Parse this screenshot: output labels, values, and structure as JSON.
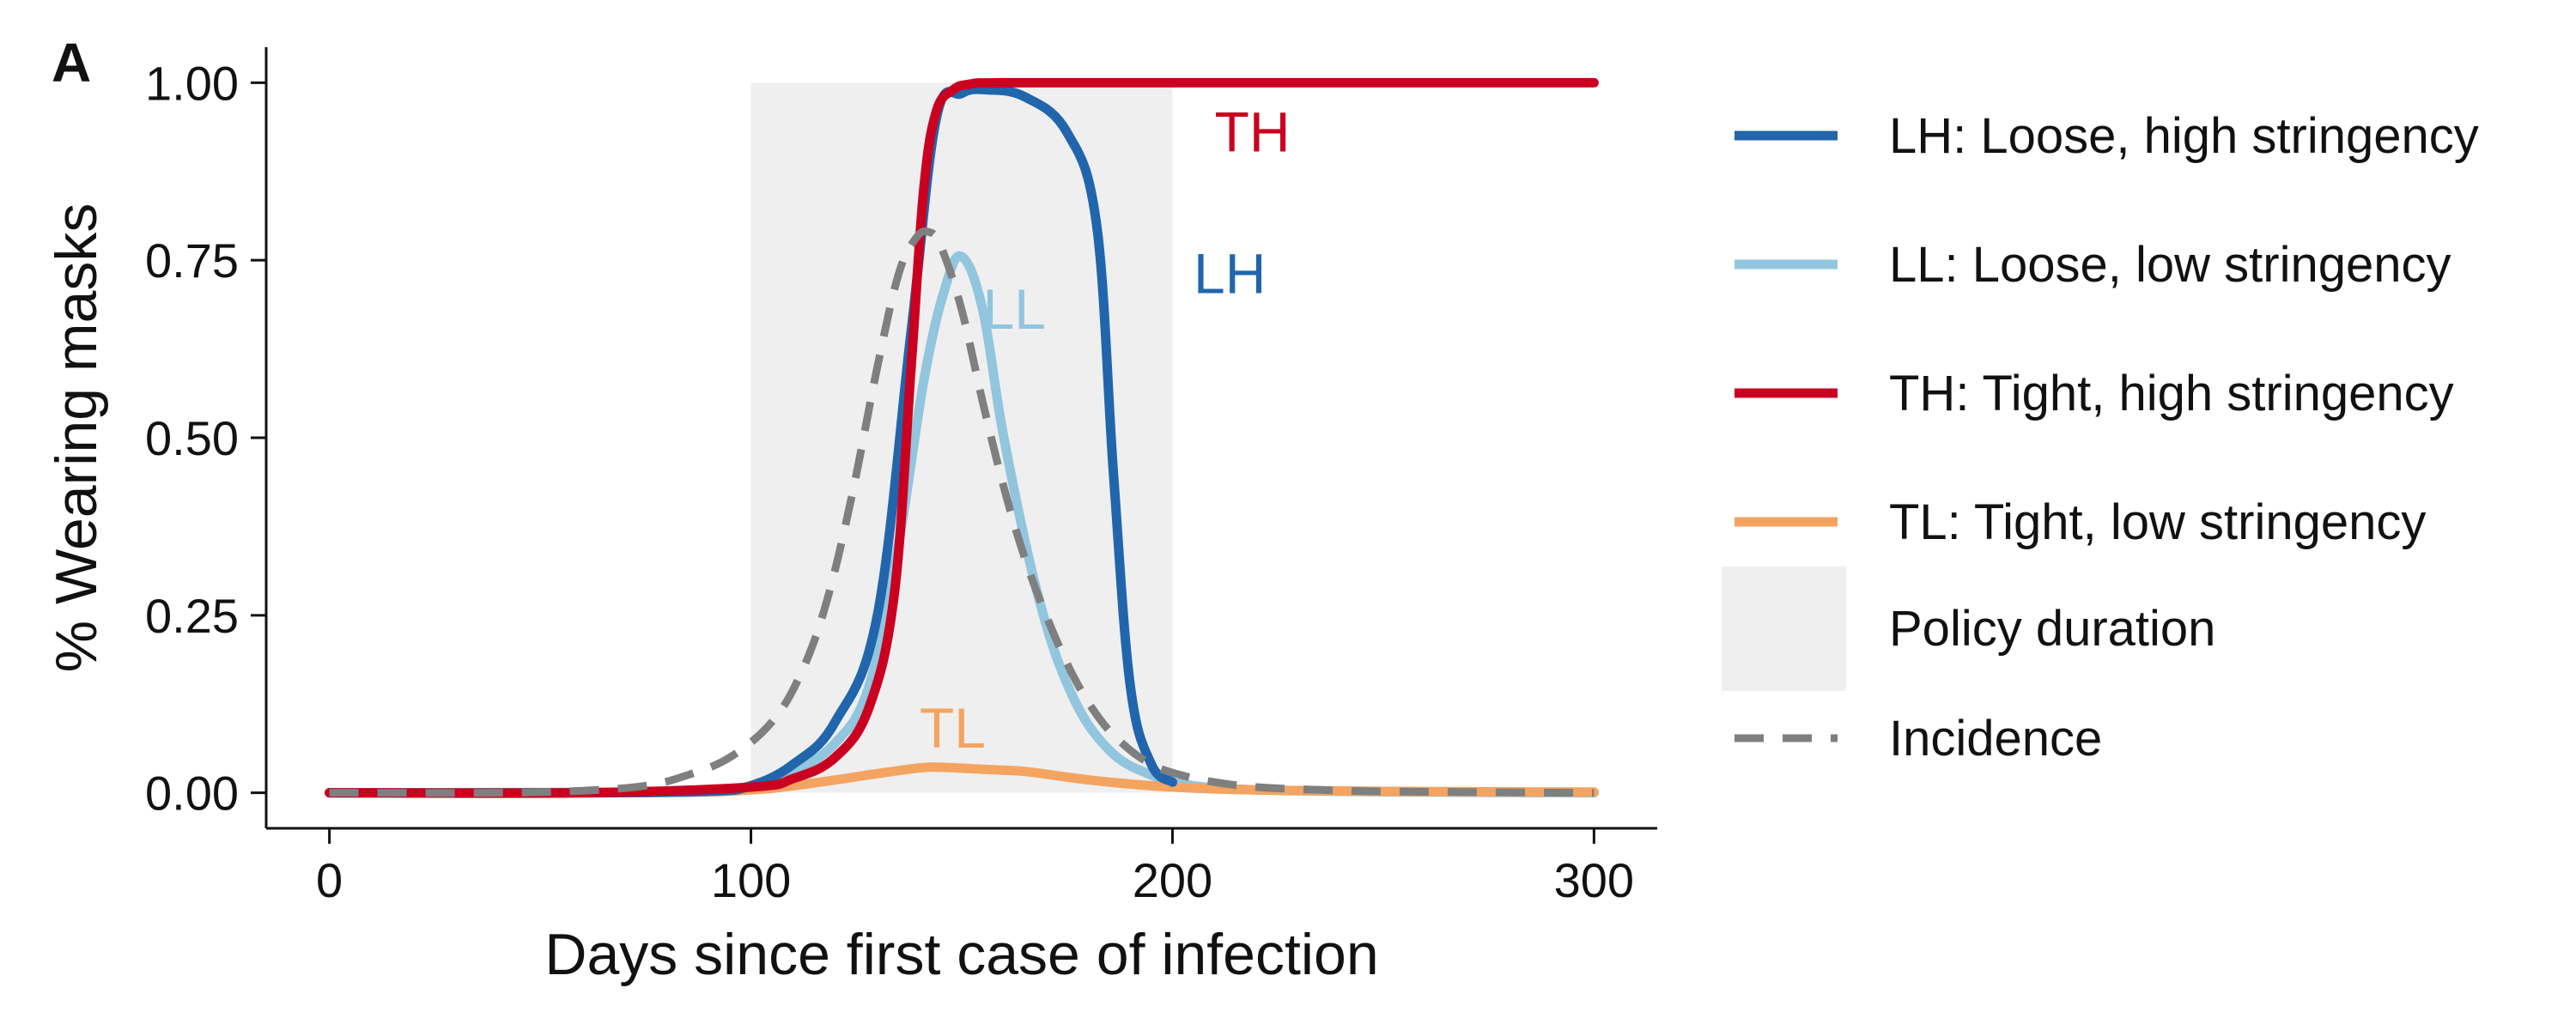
{
  "chart_data": {
    "type": "line",
    "panel_label": "A",
    "xlabel": "Days since first case of infection",
    "ylabel": "% Wearing masks",
    "xlim": [
      -15,
      315
    ],
    "ylim": [
      -0.05,
      1.05
    ],
    "x_ticks": [
      0,
      100,
      200,
      300
    ],
    "x_tick_labels": [
      "0",
      "100",
      "200",
      "300"
    ],
    "y_ticks": [
      0,
      0.25,
      0.5,
      0.75,
      1
    ],
    "y_tick_labels": [
      "0.00",
      "0.25",
      "0.50",
      "0.75",
      "1.00"
    ],
    "grid": false,
    "legend_position": "right",
    "policy_duration": {
      "label": "Policy duration",
      "x_start": 100,
      "x_end": 200,
      "color": "#efefef"
    },
    "series": [
      {
        "name": "LH: Loose, high stringency",
        "key": "LH",
        "color": "#2166ac",
        "style": "solid",
        "annotation": "LH",
        "x": [
          0,
          60,
          90,
          100,
          110,
          120,
          130,
          138,
          144,
          150,
          156,
          165,
          175,
          182,
          186,
          190,
          195,
          200
        ],
        "y": [
          0,
          0,
          0.002,
          0.01,
          0.04,
          0.1,
          0.25,
          0.65,
          0.95,
          0.985,
          0.99,
          0.98,
          0.93,
          0.8,
          0.45,
          0.15,
          0.04,
          0.015
        ]
      },
      {
        "name": "LL: Loose, low stringency",
        "key": "LL",
        "color": "#92c5de",
        "style": "solid",
        "annotation": "LL",
        "x": [
          0,
          60,
          90,
          100,
          110,
          120,
          128,
          135,
          141,
          146,
          150,
          155,
          160,
          168,
          176,
          185,
          195,
          205,
          220,
          240,
          260,
          300
        ],
        "y": [
          0,
          0,
          0.002,
          0.01,
          0.03,
          0.07,
          0.15,
          0.35,
          0.58,
          0.71,
          0.755,
          0.68,
          0.5,
          0.28,
          0.14,
          0.06,
          0.025,
          0.01,
          0.004,
          0.002,
          0.001,
          0
        ]
      },
      {
        "name": "TH: Tight, high stringency",
        "key": "TH",
        "color": "#ca0020",
        "style": "solid",
        "annotation": "TH",
        "x": [
          0,
          60,
          100,
          110,
          120,
          128,
          134,
          138,
          141,
          144,
          148,
          152,
          160,
          200,
          300
        ],
        "y": [
          0,
          0,
          0.008,
          0.02,
          0.05,
          0.12,
          0.28,
          0.6,
          0.85,
          0.96,
          0.99,
          0.998,
          1,
          1,
          1
        ]
      },
      {
        "name": "TL: Tight, low stringency",
        "key": "TL",
        "color": "#f4a460",
        "style": "solid",
        "annotation": "TL",
        "x": [
          0,
          80,
          100,
          110,
          120,
          130,
          140,
          145,
          155,
          165,
          175,
          185,
          200,
          220,
          250,
          300
        ],
        "y": [
          0,
          0.001,
          0.004,
          0.01,
          0.018,
          0.027,
          0.035,
          0.036,
          0.033,
          0.03,
          0.022,
          0.015,
          0.008,
          0.004,
          0.002,
          0.001
        ]
      },
      {
        "name": "Incidence",
        "key": "Incidence",
        "color": "#7f7f7f",
        "style": "dashed",
        "x": [
          0,
          40,
          60,
          75,
          85,
          95,
          105,
          112,
          118,
          124,
          130,
          135,
          139,
          142,
          145,
          150,
          155,
          160,
          165,
          170,
          176,
          182,
          188,
          195,
          202,
          210,
          220,
          235,
          250,
          270,
          300
        ],
        "y": [
          0,
          0,
          0.003,
          0.01,
          0.025,
          0.05,
          0.1,
          0.17,
          0.27,
          0.42,
          0.6,
          0.73,
          0.78,
          0.79,
          0.77,
          0.68,
          0.55,
          0.43,
          0.33,
          0.25,
          0.17,
          0.11,
          0.07,
          0.04,
          0.025,
          0.015,
          0.008,
          0.004,
          0.002,
          0.001,
          0
        ]
      }
    ]
  }
}
